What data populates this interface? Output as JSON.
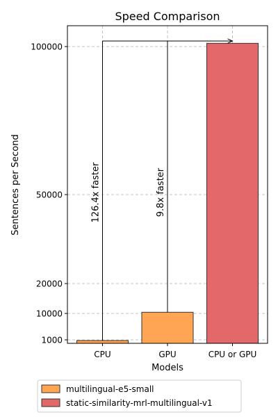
{
  "chart_data": {
    "type": "bar",
    "title": "Speed Comparison",
    "xlabel": "Models",
    "ylabel": "Sentences per Second",
    "categories": [
      "CPU",
      "GPU",
      "CPU or GPU"
    ],
    "ylim": [
      0,
      108000
    ],
    "yticks": [
      1000,
      10000,
      20000,
      50000,
      100000
    ],
    "grid": true,
    "legend_placement": "bottom-center",
    "bars": [
      {
        "category": "CPU",
        "value": 800,
        "series": 0
      },
      {
        "category": "GPU",
        "value": 10400,
        "series": 0
      },
      {
        "category": "CPU or GPU",
        "value": 101100,
        "series": 1
      }
    ],
    "series": [
      {
        "name": "multilingual-e5-small",
        "color": "#ffa554"
      },
      {
        "name": "static-similarity-mrl-multilingual-v1",
        "color": "#e3686a"
      }
    ],
    "annotations": [
      {
        "label": "126.4x faster",
        "from": "CPU",
        "to": "CPU or GPU"
      },
      {
        "label": "9.8x faster",
        "from": "GPU",
        "to": "CPU or GPU"
      }
    ]
  }
}
